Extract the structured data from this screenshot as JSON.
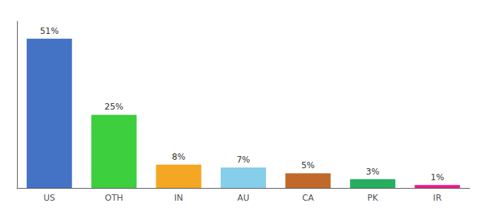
{
  "chart_data": {
    "type": "bar",
    "categories": [
      "US",
      "OTH",
      "IN",
      "AU",
      "CA",
      "PK",
      "IR"
    ],
    "values": [
      51,
      25,
      8,
      7,
      5,
      3,
      1
    ],
    "value_labels": [
      "51%",
      "25%",
      "8%",
      "7%",
      "5%",
      "3%",
      "1%"
    ],
    "colors": [
      "#4472c4",
      "#3ecf3e",
      "#f5a623",
      "#87ceeb",
      "#c0692a",
      "#27ae60",
      "#e91e8c"
    ],
    "ylim": [
      0,
      57
    ],
    "grid": false,
    "data_labels": true,
    "tick_labels": "x"
  }
}
